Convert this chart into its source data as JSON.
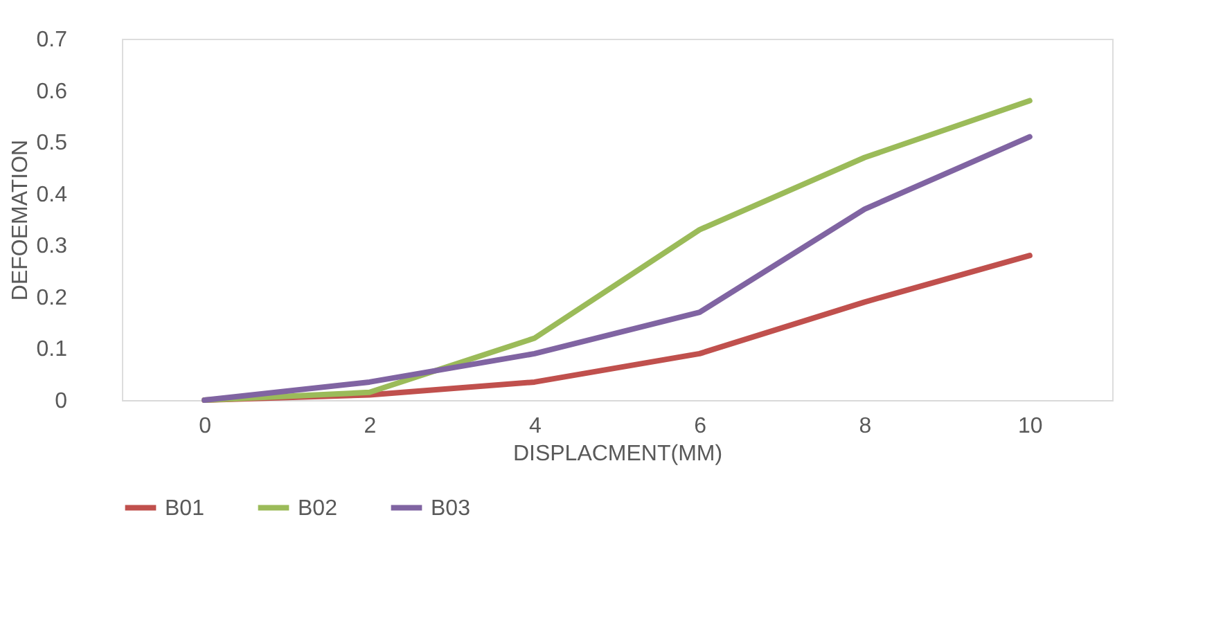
{
  "chart_data": {
    "type": "line",
    "xlabel": "DISPLACMENT(MM)",
    "ylabel": "DEFOEMATION",
    "categories": [
      "0",
      "2",
      "4",
      "6",
      "8",
      "10"
    ],
    "series": [
      {
        "name": "B01",
        "color": "#c0504d",
        "values": [
          0,
          0.01,
          0.035,
          0.09,
          0.19,
          0.28
        ]
      },
      {
        "name": "B02",
        "color": "#9bbb59",
        "values": [
          0,
          0.015,
          0.12,
          0.33,
          0.47,
          0.58
        ]
      },
      {
        "name": "B03",
        "color": "#8064a2",
        "values": [
          0,
          0.035,
          0.09,
          0.17,
          0.37,
          0.51
        ]
      }
    ],
    "ylim": [
      0,
      0.7
    ],
    "yticks": [
      0,
      0.1,
      0.2,
      0.3,
      0.4,
      0.5,
      0.6,
      0.7
    ],
    "grid": false,
    "legend": "bottom",
    "marker": "none",
    "line_style": "solid"
  }
}
